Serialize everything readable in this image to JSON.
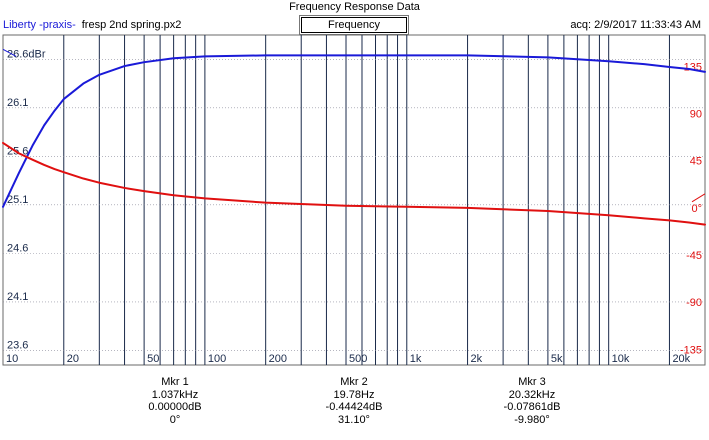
{
  "window": {
    "title": "Frequency Response Data"
  },
  "header": {
    "product": "Liberty -praxis-",
    "filename": "fresp 2nd spring.px2",
    "chart_title": "Frequency Response",
    "acquired": "acq: 2/9/2017 11:33:43 AM"
  },
  "colors": {
    "magnitude": "#1a1ad8",
    "phase": "#e01010",
    "gridline": "#1a2a4a",
    "background": "#ffffff"
  },
  "chart_data": {
    "type": "line",
    "x_scale": "log",
    "xlim": [
      10,
      30000
    ],
    "x_ticks": [
      {
        "v": 10,
        "label": "10"
      },
      {
        "v": 20,
        "label": "20"
      },
      {
        "v": 50,
        "label": "50"
      },
      {
        "v": 100,
        "label": "100"
      },
      {
        "v": 200,
        "label": "200"
      },
      {
        "v": 500,
        "label": "500"
      },
      {
        "v": 1000,
        "label": "1k"
      },
      {
        "v": 2000,
        "label": "2k"
      },
      {
        "v": 5000,
        "label": "5k"
      },
      {
        "v": 10000,
        "label": "10k"
      },
      {
        "v": 20000,
        "label": "20k"
      }
    ],
    "y_left": {
      "unit_label": "dBr",
      "ylim": [
        23.45,
        26.85
      ],
      "ticks": [
        26.6,
        26.1,
        25.6,
        25.1,
        24.6,
        24.1,
        23.6
      ],
      "tick_labels": [
        "26.6dBr",
        "26.1",
        "25.6",
        "25.1",
        "24.6",
        "24.1",
        "23.6"
      ]
    },
    "y_right": {
      "ylim": [
        -150,
        165
      ],
      "ticks": [
        135,
        90,
        45,
        0,
        -45,
        -90,
        -135
      ],
      "tick_labels": [
        "135",
        "90",
        "45",
        "0°",
        "-45",
        "-90",
        "-135"
      ]
    },
    "grid": true,
    "series": [
      {
        "axis": "left",
        "x": [
          10,
          12,
          14,
          16,
          18,
          20,
          25,
          30,
          40,
          50,
          70,
          100,
          200,
          500,
          1000,
          2000,
          5000,
          10000,
          15000,
          20000,
          25000,
          30000
        ],
        "values": [
          25.08,
          25.43,
          25.71,
          25.92,
          26.07,
          26.19,
          26.35,
          26.44,
          26.53,
          26.57,
          26.61,
          26.63,
          26.64,
          26.64,
          26.64,
          26.64,
          26.62,
          26.58,
          26.55,
          26.52,
          26.5,
          26.47
        ]
      },
      {
        "axis": "right",
        "x": [
          10,
          12,
          14,
          16,
          18,
          20,
          25,
          30,
          40,
          50,
          70,
          100,
          200,
          500,
          1000,
          2000,
          5000,
          10000,
          15000,
          20000,
          25000,
          30000
        ],
        "values": [
          62,
          52,
          46,
          41,
          37,
          34,
          28,
          24,
          19,
          16,
          12,
          9,
          5,
          2,
          1,
          0,
          -3,
          -7,
          -10,
          -12,
          -14,
          -16
        ]
      }
    ]
  },
  "markers": [
    {
      "label": "Mkr 1",
      "freq": "1.037kHz",
      "level": "0.00000dB",
      "phase": "0°"
    },
    {
      "label": "Mkr 2",
      "freq": "19.78Hz",
      "level": "-0.44424dB",
      "phase": "31.10°"
    },
    {
      "label": "Mkr 3",
      "freq": "20.32kHz",
      "level": "-0.07861dB",
      "phase": "-9.980°"
    }
  ]
}
